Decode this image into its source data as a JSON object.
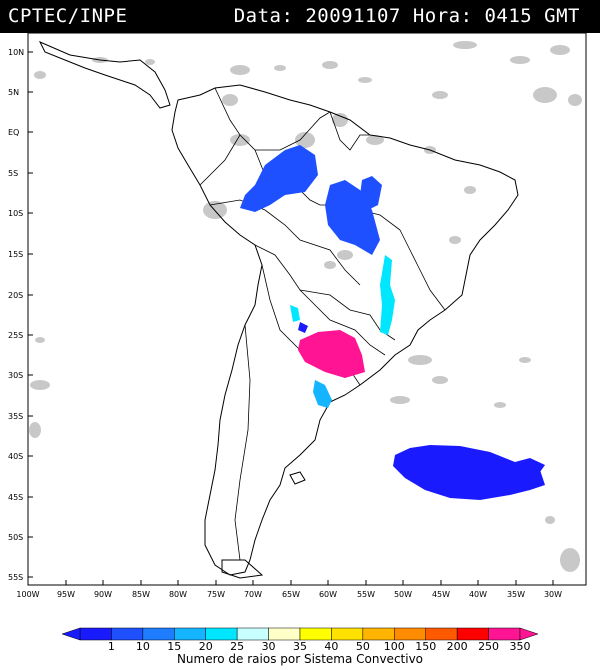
{
  "header": {
    "source": "CPTEC/INPE",
    "date_label": "Data:",
    "date": "20091107",
    "time_label": "Hora:",
    "time": "0415 GMT"
  },
  "map": {
    "longitude_labels": [
      "100W",
      "95W",
      "90W",
      "85W",
      "80W",
      "75W",
      "70W",
      "65W",
      "60W",
      "55W",
      "50W",
      "45W",
      "40W",
      "35W",
      "30W"
    ],
    "latitude_labels": [
      "10N",
      "5N",
      "EQ",
      "5S",
      "10S",
      "15S",
      "20S",
      "25S",
      "30S",
      "35S",
      "40S",
      "45S",
      "50S",
      "55S"
    ],
    "background_clouds_color": "#c8c8c8",
    "coast_color": "#000000"
  },
  "legend": {
    "ticks": [
      "1",
      "10",
      "15",
      "20",
      "25",
      "30",
      "35",
      "40",
      "50",
      "100",
      "150",
      "200",
      "250",
      "350"
    ],
    "colors": [
      "#1a1aff",
      "#1e50ff",
      "#1e7cff",
      "#14b4ff",
      "#00e6ff",
      "#c8ffff",
      "#ffffc8",
      "#ffff00",
      "#ffe100",
      "#ffb400",
      "#ff8c00",
      "#ff5a00",
      "#ff0000",
      "#ff1493"
    ],
    "label": "Numero de raios por Sistema Convectivo"
  }
}
